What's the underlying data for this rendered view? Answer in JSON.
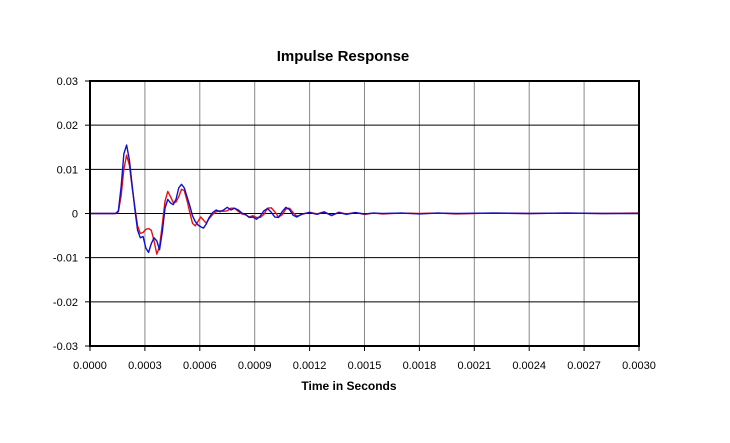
{
  "chart_data": {
    "type": "line",
    "title": "Impulse Response",
    "xlabel": "Time in Seconds",
    "ylabel": "",
    "xlim": [
      0,
      0.003
    ],
    "ylim": [
      -0.03,
      0.03
    ],
    "grid": true,
    "legend": "none",
    "x_tick_labels": [
      "0.0000",
      "0.0003",
      "0.0006",
      "0.0009",
      "0.0012",
      "0.0015",
      "0.0018",
      "0.0021",
      "0.0024",
      "0.0027",
      "0.0030"
    ],
    "y_tick_labels": [
      "0.03",
      "0.02",
      "0.01",
      "0",
      "-0.01",
      "-0.02",
      "-0.03"
    ],
    "series": [
      {
        "color": "#e81010",
        "points": [
          [
            0,
            0
          ],
          [
            0.00014,
            0
          ],
          [
            0.000155,
            0.0004
          ],
          [
            0.00017,
            0.004
          ],
          [
            0.000185,
            0.01
          ],
          [
            0.0002,
            0.0132
          ],
          [
            0.000215,
            0.011
          ],
          [
            0.00023,
            0.006
          ],
          [
            0.000245,
            0.0015
          ],
          [
            0.00026,
            -0.0028
          ],
          [
            0.000275,
            -0.0045
          ],
          [
            0.00029,
            -0.0043
          ],
          [
            0.000305,
            -0.0036
          ],
          [
            0.00032,
            -0.0034
          ],
          [
            0.000335,
            -0.0038
          ],
          [
            0.00035,
            -0.0062
          ],
          [
            0.000365,
            -0.0092
          ],
          [
            0.00038,
            -0.0075
          ],
          [
            0.000395,
            -0.0025
          ],
          [
            0.00041,
            0.0028
          ],
          [
            0.000425,
            0.005
          ],
          [
            0.00044,
            0.0038
          ],
          [
            0.000455,
            0.0025
          ],
          [
            0.00047,
            0.0026
          ],
          [
            0.000485,
            0.0038
          ],
          [
            0.0005,
            0.0055
          ],
          [
            0.000515,
            0.0052
          ],
          [
            0.00053,
            0.003
          ],
          [
            0.000545,
            0.0003
          ],
          [
            0.00056,
            -0.0022
          ],
          [
            0.000575,
            -0.0028
          ],
          [
            0.00059,
            -0.0018
          ],
          [
            0.000605,
            -0.0008
          ],
          [
            0.00062,
            -0.0015
          ],
          [
            0.000635,
            -0.0022
          ],
          [
            0.00065,
            -0.0012
          ],
          [
            0.00067,
            -0.0002
          ],
          [
            0.00069,
            0.0004
          ],
          [
            0.00071,
            0.0006
          ],
          [
            0.00073,
            0.0005
          ],
          [
            0.00075,
            0.0006
          ],
          [
            0.00077,
            0.0012
          ],
          [
            0.00079,
            0.0012
          ],
          [
            0.00081,
            0.0005
          ],
          [
            0.00083,
            -0.0001
          ],
          [
            0.00085,
            -0.0003
          ],
          [
            0.00087,
            -0.0008
          ],
          [
            0.00089,
            -0.0005
          ],
          [
            0.00091,
            -0.0009
          ],
          [
            0.00093,
            -0.0009
          ],
          [
            0.00095,
            -0.0002
          ],
          [
            0.00097,
            0.0012
          ],
          [
            0.00099,
            0.0013
          ],
          [
            0.00101,
            0.0004
          ],
          [
            0.00103,
            -0.0008
          ],
          [
            0.00105,
            -0.0003
          ],
          [
            0.00107,
            0.001
          ],
          [
            0.00109,
            0.0012
          ],
          [
            0.00111,
            0.0002
          ],
          [
            0.00113,
            -0.0006
          ],
          [
            0.00116,
            -0.0002
          ],
          [
            0.0012,
            0.0003
          ],
          [
            0.00124,
            -0.0001
          ],
          [
            0.00128,
            0.0004
          ],
          [
            0.00132,
            -0.0005
          ],
          [
            0.00136,
            0.0003
          ],
          [
            0.0014,
            -0.0001
          ],
          [
            0.00145,
            0.0002
          ],
          [
            0.0015,
            -0.0002
          ],
          [
            0.00155,
            0.0001
          ],
          [
            0.0016,
            -0.0001
          ],
          [
            0.0017,
            0.0001
          ],
          [
            0.0018,
            0
          ],
          [
            0.0019,
            0.0001
          ],
          [
            0.002,
            -0.0001
          ],
          [
            0.0022,
            0.0001
          ],
          [
            0.0024,
            0
          ],
          [
            0.0026,
            0.0001
          ],
          [
            0.0028,
            0
          ],
          [
            0.003,
            0.0001
          ]
        ]
      },
      {
        "color": "#1010cc",
        "points": [
          [
            0,
            0
          ],
          [
            0.00014,
            0
          ],
          [
            0.000155,
            0.0006
          ],
          [
            0.00017,
            0.006
          ],
          [
            0.000185,
            0.0135
          ],
          [
            0.0002,
            0.0155
          ],
          [
            0.000215,
            0.0122
          ],
          [
            0.00023,
            0.0065
          ],
          [
            0.000245,
            0.001
          ],
          [
            0.00026,
            -0.0038
          ],
          [
            0.000275,
            -0.0055
          ],
          [
            0.00029,
            -0.0052
          ],
          [
            0.000305,
            -0.0078
          ],
          [
            0.00032,
            -0.0088
          ],
          [
            0.000335,
            -0.0068
          ],
          [
            0.00035,
            -0.0055
          ],
          [
            0.000365,
            -0.0062
          ],
          [
            0.00038,
            -0.0082
          ],
          [
            0.000395,
            -0.0042
          ],
          [
            0.00041,
            0.0012
          ],
          [
            0.000425,
            0.0032
          ],
          [
            0.00044,
            0.0024
          ],
          [
            0.000455,
            0.002
          ],
          [
            0.00047,
            0.0032
          ],
          [
            0.000485,
            0.0058
          ],
          [
            0.0005,
            0.0066
          ],
          [
            0.000515,
            0.0058
          ],
          [
            0.00053,
            0.0038
          ],
          [
            0.000545,
            0.0018
          ],
          [
            0.00056,
            -0.0005
          ],
          [
            0.000575,
            -0.0018
          ],
          [
            0.00059,
            -0.0026
          ],
          [
            0.000605,
            -0.003
          ],
          [
            0.00062,
            -0.0033
          ],
          [
            0.000635,
            -0.0024
          ],
          [
            0.00065,
            -0.001
          ],
          [
            0.00067,
            0.0002
          ],
          [
            0.00069,
            0.0008
          ],
          [
            0.00071,
            0.0004
          ],
          [
            0.00073,
            0.0008
          ],
          [
            0.00075,
            0.0014
          ],
          [
            0.00077,
            0.0008
          ],
          [
            0.00079,
            0.0012
          ],
          [
            0.00081,
            0.0008
          ],
          [
            0.00083,
            0.0001
          ],
          [
            0.00085,
            -0.0002
          ],
          [
            0.00087,
            -0.0009
          ],
          [
            0.00089,
            -0.0008
          ],
          [
            0.00091,
            -0.0013
          ],
          [
            0.00093,
            -0.0006
          ],
          [
            0.00095,
            0.0006
          ],
          [
            0.00097,
            0.0011
          ],
          [
            0.00099,
            0.0003
          ],
          [
            0.00101,
            -0.0008
          ],
          [
            0.00103,
            -0.0009
          ],
          [
            0.00105,
            0.0004
          ],
          [
            0.00107,
            0.0014
          ],
          [
            0.00109,
            0.0009
          ],
          [
            0.00111,
            -0.0004
          ],
          [
            0.00113,
            -0.0008
          ],
          [
            0.00116,
            -0.0001
          ],
          [
            0.0012,
            0.0002
          ],
          [
            0.00124,
            -0.0002
          ],
          [
            0.00128,
            0.0003
          ],
          [
            0.00132,
            -0.0004
          ],
          [
            0.00136,
            0.0002
          ],
          [
            0.0014,
            -0.0002
          ],
          [
            0.00145,
            0.0002
          ],
          [
            0.0015,
            -0.0001
          ],
          [
            0.00155,
            0.0001
          ],
          [
            0.0016,
            0
          ],
          [
            0.0017,
            0.0001
          ],
          [
            0.0018,
            -0.0001
          ],
          [
            0.0019,
            0.0001
          ],
          [
            0.002,
            0
          ],
          [
            0.0022,
            0.0001
          ],
          [
            0.0024,
            0
          ],
          [
            0.0026,
            0.0001
          ],
          [
            0.0028,
            0
          ],
          [
            0.003,
            0
          ]
        ]
      }
    ]
  }
}
